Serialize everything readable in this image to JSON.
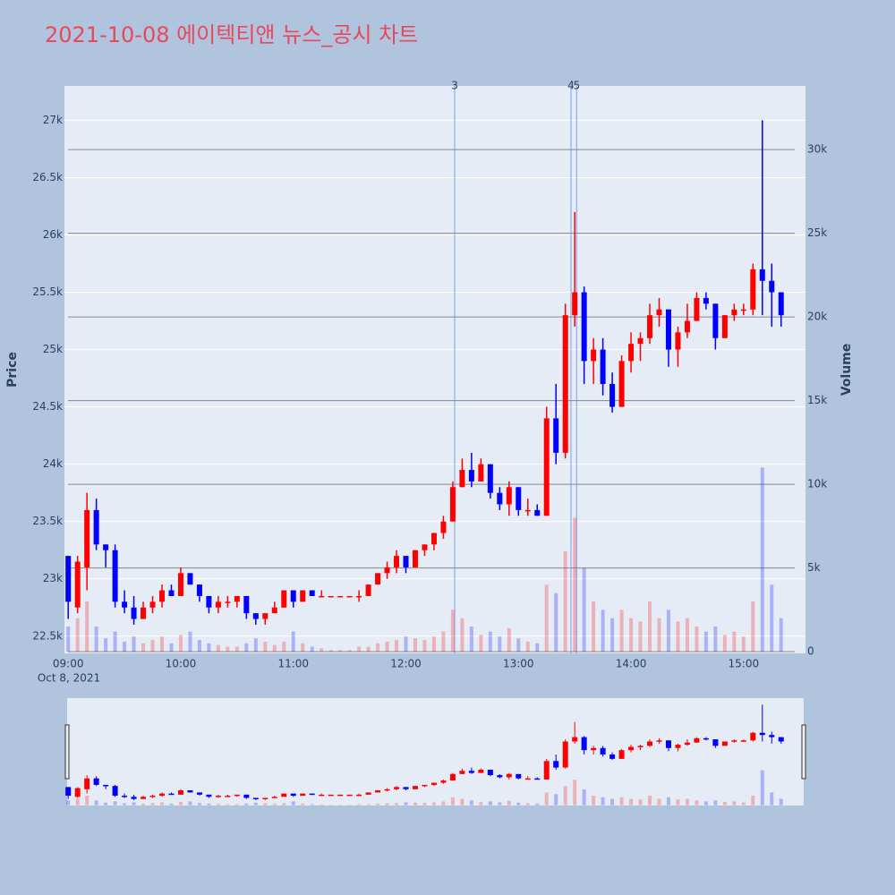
{
  "chart_data": {
    "type": "candlestick",
    "title": "2021-10-08 에이텍티앤 뉴스_공시 차트",
    "y_label": "Price",
    "y2_label": "Volume",
    "x_date_label": "Oct 8, 2021",
    "increasing_color": "#ff0000",
    "decreasing_color": "#0000ff",
    "grid": true,
    "rangeslider": true,
    "xlim": [
      "08:58",
      "15:33"
    ],
    "xticks": [
      "09:00",
      "10:00",
      "11:00",
      "12:00",
      "13:00",
      "14:00",
      "15:00"
    ],
    "ylim": [
      22350,
      27300
    ],
    "yticks": [
      {
        "value": 22500,
        "label": "22.5k"
      },
      {
        "value": 23000,
        "label": "23k"
      },
      {
        "value": 23500,
        "label": "23.5k"
      },
      {
        "value": 24000,
        "label": "24k"
      },
      {
        "value": 24500,
        "label": "24.5k"
      },
      {
        "value": 25000,
        "label": "25k"
      },
      {
        "value": 25500,
        "label": "25.5k"
      },
      {
        "value": 26000,
        "label": "26k"
      },
      {
        "value": 26500,
        "label": "26.5k"
      },
      {
        "value": 27000,
        "label": "27k"
      }
    ],
    "y2lim": [
      -100,
      33800
    ],
    "y2ticks": [
      0,
      {
        "value": 5000,
        "label": "5k"
      },
      {
        "value": 10000,
        "label": "10k"
      },
      {
        "value": 15000,
        "label": "15k"
      },
      {
        "value": 20000,
        "label": "20k"
      },
      {
        "value": 25000,
        "label": "25k"
      },
      {
        "value": 30000,
        "label": "30k"
      }
    ],
    "annotations": [
      {
        "x": "12:26",
        "label": "3"
      },
      {
        "x": "13:28",
        "label": "4"
      },
      {
        "x": "13:31",
        "label": "5"
      }
    ],
    "x": [
      "09:00",
      "09:05",
      "09:10",
      "09:15",
      "09:20",
      "09:25",
      "09:30",
      "09:35",
      "09:40",
      "09:45",
      "09:50",
      "09:55",
      "10:00",
      "10:05",
      "10:10",
      "10:15",
      "10:20",
      "10:25",
      "10:30",
      "10:35",
      "10:40",
      "10:45",
      "10:50",
      "10:55",
      "11:00",
      "11:05",
      "11:10",
      "11:15",
      "11:20",
      "11:25",
      "11:30",
      "11:35",
      "11:40",
      "11:45",
      "11:50",
      "11:55",
      "12:00",
      "12:05",
      "12:10",
      "12:15",
      "12:20",
      "12:25",
      "12:30",
      "12:35",
      "12:40",
      "12:45",
      "12:50",
      "12:55",
      "13:00",
      "13:05",
      "13:10",
      "13:15",
      "13:20",
      "13:25",
      "13:30",
      "13:35",
      "13:40",
      "13:45",
      "13:50",
      "13:55",
      "14:00",
      "14:05",
      "14:10",
      "14:15",
      "14:20",
      "14:25",
      "14:30",
      "14:35",
      "14:40",
      "14:45",
      "14:50",
      "14:55",
      "15:00",
      "15:05",
      "15:10",
      "15:15",
      "15:20"
    ],
    "open": [
      23200,
      22750,
      23100,
      23600,
      23300,
      23250,
      22800,
      22750,
      22650,
      22750,
      22800,
      22900,
      22850,
      23050,
      22950,
      22850,
      22750,
      22800,
      22800,
      22850,
      22700,
      22650,
      22700,
      22750,
      22900,
      22800,
      22900,
      22850,
      22850,
      22850,
      22850,
      22850,
      22850,
      22950,
      23050,
      23100,
      23200,
      23100,
      23250,
      23300,
      23400,
      23500,
      23800,
      23950,
      23850,
      24000,
      23750,
      23650,
      23800,
      23600,
      23600,
      23550,
      24400,
      24100,
      25300,
      25500,
      24900,
      25000,
      24700,
      24500,
      24900,
      25050,
      25100,
      25300,
      25350,
      25000,
      25150,
      25250,
      25450,
      25400,
      25100,
      25300,
      25350,
      25350,
      25700,
      25600,
      25500
    ],
    "high": [
      23200,
      23200,
      23750,
      23700,
      23300,
      23300,
      22900,
      22850,
      22800,
      22850,
      22950,
      22950,
      23100,
      23050,
      22950,
      22850,
      22850,
      22850,
      22850,
      22850,
      22700,
      22700,
      22800,
      22900,
      22900,
      22900,
      22900,
      22900,
      22850,
      22850,
      22850,
      22900,
      22950,
      23050,
      23150,
      23250,
      23200,
      23250,
      23300,
      23400,
      23550,
      23850,
      24050,
      24100,
      24050,
      24000,
      23800,
      23850,
      23800,
      23700,
      23650,
      24500,
      24700,
      25400,
      26200,
      25550,
      25100,
      25100,
      24800,
      24950,
      25150,
      25150,
      25400,
      25450,
      25350,
      25200,
      25400,
      25500,
      25500,
      25400,
      25300,
      25400,
      25400,
      25750,
      27000,
      25750,
      25500
    ],
    "low": [
      22650,
      22700,
      22900,
      23250,
      23100,
      22750,
      22700,
      22600,
      22650,
      22700,
      22750,
      22850,
      22850,
      22950,
      22800,
      22700,
      22700,
      22750,
      22750,
      22650,
      22600,
      22600,
      22700,
      22750,
      22750,
      22800,
      22850,
      22850,
      22850,
      22850,
      22850,
      22800,
      22850,
      22950,
      23000,
      23050,
      23050,
      23100,
      23200,
      23250,
      23350,
      23500,
      23800,
      23800,
      23850,
      23700,
      23600,
      23550,
      23550,
      23550,
      23550,
      23550,
      24000,
      24050,
      25200,
      24700,
      24700,
      24600,
      24450,
      24500,
      24800,
      24900,
      25050,
      25200,
      24850,
      24850,
      25100,
      25250,
      25350,
      25000,
      25100,
      25250,
      25300,
      25300,
      25300,
      25200,
      25200
    ],
    "close": [
      22800,
      23150,
      23600,
      23300,
      23250,
      22800,
      22750,
      22650,
      22750,
      22800,
      22900,
      22850,
      23050,
      22950,
      22850,
      22750,
      22800,
      22800,
      22850,
      22700,
      22650,
      22700,
      22750,
      22900,
      22800,
      22900,
      22850,
      22850,
      22850,
      22850,
      22850,
      22850,
      22950,
      23050,
      23100,
      23200,
      23100,
      23250,
      23300,
      23400,
      23500,
      23800,
      23950,
      23850,
      24000,
      23750,
      23650,
      23800,
      23600,
      23600,
      23550,
      24400,
      24100,
      25300,
      25500,
      24900,
      25000,
      24700,
      24500,
      24900,
      25050,
      25100,
      25300,
      25350,
      25000,
      25150,
      25250,
      25450,
      25400,
      25100,
      25300,
      25350,
      25350,
      25700,
      25600,
      25500,
      25300
    ],
    "volume": [
      1500,
      2000,
      3000,
      1500,
      800,
      1200,
      600,
      900,
      500,
      700,
      900,
      500,
      1000,
      1200,
      700,
      500,
      400,
      300,
      300,
      500,
      800,
      600,
      400,
      600,
      1200,
      500,
      300,
      200,
      100,
      100,
      100,
      300,
      300,
      500,
      600,
      700,
      900,
      800,
      700,
      900,
      1200,
      2500,
      2000,
      1500,
      1000,
      1200,
      900,
      1400,
      800,
      600,
      500,
      4000,
      3500,
      6000,
      8000,
      5000,
      3000,
      2500,
      2000,
      2500,
      2000,
      1800,
      3000,
      2000,
      2500,
      1800,
      2000,
      1500,
      1200,
      1500,
      1000,
      1200,
      900,
      3000,
      11000,
      4000,
      2000
    ]
  }
}
